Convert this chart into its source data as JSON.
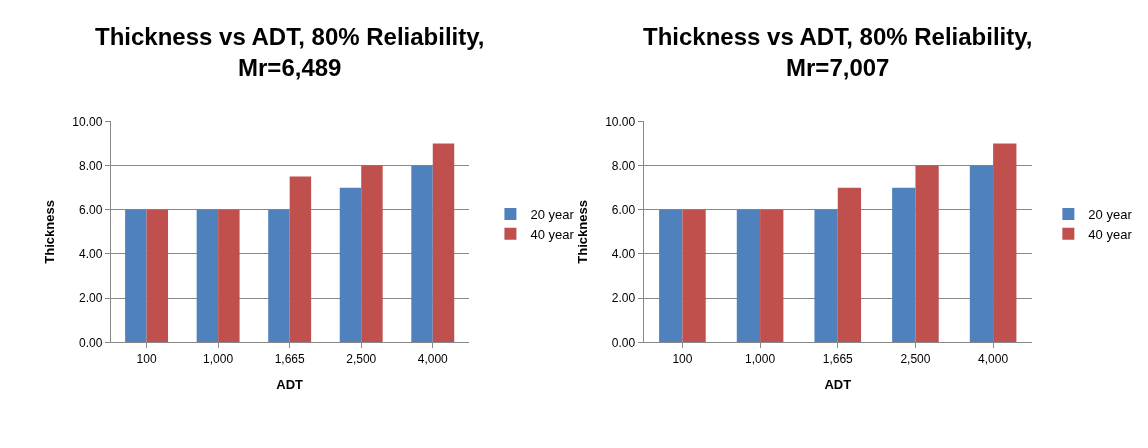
{
  "chart_data": [
    {
      "type": "bar",
      "title": "Thickness vs ADT, 80% Reliability,\nMr=6,489",
      "xlabel": "ADT",
      "ylabel": "Thickness",
      "categories": [
        "100",
        "1,000",
        "1,665",
        "2,500",
        "4,000"
      ],
      "series": [
        {
          "name": "20 year",
          "color": "#4f81bd",
          "values": [
            6,
            6,
            6,
            7,
            8
          ]
        },
        {
          "name": "40 year",
          "color": "#c0504d",
          "values": [
            6,
            6,
            7.5,
            8,
            9
          ]
        }
      ],
      "ylim": [
        0,
        10
      ],
      "yticks": [
        {
          "value": 0,
          "label": "0.00"
        },
        {
          "value": 2,
          "label": "2.00"
        },
        {
          "value": 4,
          "label": "4.00"
        },
        {
          "value": 6,
          "label": "6.00"
        },
        {
          "value": 8,
          "label": "8.00"
        },
        {
          "value": 10,
          "label": "10.00"
        }
      ],
      "grid": "y",
      "legend": "right"
    },
    {
      "type": "bar",
      "title": "Thickness vs ADT, 80% Reliability,\nMr=7,007",
      "xlabel": "ADT",
      "ylabel": "Thickness",
      "categories": [
        "100",
        "1,000",
        "1,665",
        "2,500",
        "4,000"
      ],
      "series": [
        {
          "name": "20 year",
          "color": "#4f81bd",
          "values": [
            6,
            6,
            6,
            7,
            8
          ]
        },
        {
          "name": "40 year",
          "color": "#c0504d",
          "values": [
            6,
            6,
            7,
            8,
            9
          ]
        }
      ],
      "ylim": [
        0,
        10
      ],
      "yticks": [
        {
          "value": 0,
          "label": "0.00"
        },
        {
          "value": 2,
          "label": "2.00"
        },
        {
          "value": 4,
          "label": "4.00"
        },
        {
          "value": 6,
          "label": "6.00"
        },
        {
          "value": 8,
          "label": "8.00"
        },
        {
          "value": 10,
          "label": "10.00"
        }
      ],
      "grid": "y",
      "legend": "right"
    }
  ]
}
